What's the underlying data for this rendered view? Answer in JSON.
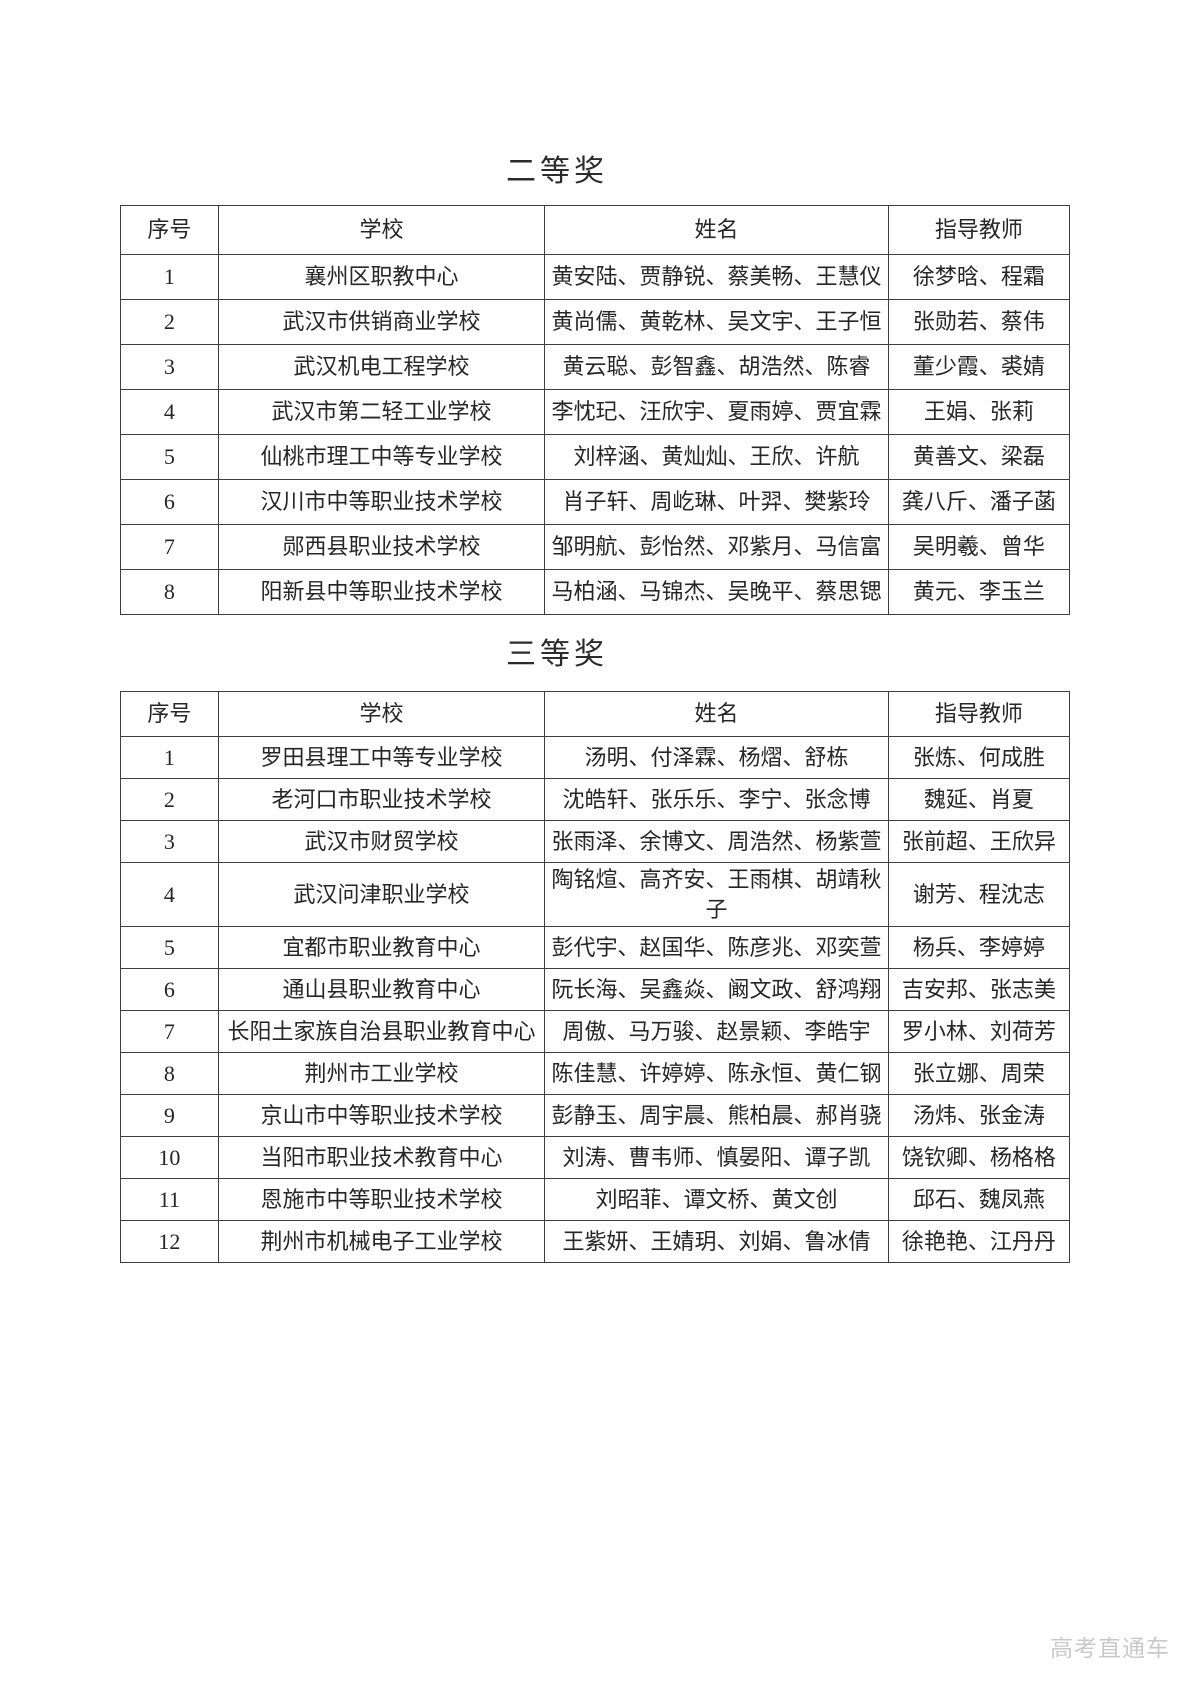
{
  "document": {
    "watermark": "高考直通车"
  },
  "tables": [
    {
      "title": "二等奖",
      "headers": [
        "序号",
        "学校",
        "姓名",
        "指导教师"
      ],
      "rows": [
        [
          "1",
          "襄州区职教中心",
          "黄安陆、贾静锐、蔡美畅、王慧仪",
          "徐梦晗、程霜"
        ],
        [
          "2",
          "武汉市供销商业学校",
          "黄尚儒、黄乾林、吴文宇、王子恒",
          "张勋若、蔡伟"
        ],
        [
          "3",
          "武汉机电工程学校",
          "黄云聪、彭智鑫、胡浩然、陈睿",
          "董少霞、裘婧"
        ],
        [
          "4",
          "武汉市第二轻工业学校",
          "李忱玘、汪欣宇、夏雨婷、贾宜霖",
          "王娟、张莉"
        ],
        [
          "5",
          "仙桃市理工中等专业学校",
          "刘梓涵、黄灿灿、王欣、许航",
          "黄善文、梁磊"
        ],
        [
          "6",
          "汉川市中等职业技术学校",
          "肖子轩、周屹琳、叶羿、樊紫玲",
          "龚八斤、潘子菡"
        ],
        [
          "7",
          "郧西县职业技术学校",
          "邹明航、彭怡然、邓紫月、马信富",
          "吴明羲、曾华"
        ],
        [
          "8",
          "阳新县中等职业技术学校",
          "马柏涵、马锦杰、吴晚平、蔡思锶",
          "黄元、李玉兰"
        ]
      ]
    },
    {
      "title": "三等奖",
      "headers": [
        "序号",
        "学校",
        "姓名",
        "指导教师"
      ],
      "rows": [
        [
          "1",
          "罗田县理工中等专业学校",
          "汤明、付泽霖、杨熠、舒栋",
          "张炼、何成胜"
        ],
        [
          "2",
          "老河口市职业技术学校",
          "沈皓轩、张乐乐、李宁、张念博",
          "魏延、肖夏"
        ],
        [
          "3",
          "武汉市财贸学校",
          "张雨泽、余博文、周浩然、杨紫萱",
          "张前超、王欣异"
        ],
        [
          "4",
          "武汉问津职业学校",
          "陶铭煊、高齐安、王雨棋、胡靖秋子",
          "谢芳、程沈志"
        ],
        [
          "5",
          "宜都市职业教育中心",
          "彭代宇、赵国华、陈彦兆、邓奕萱",
          "杨兵、李婷婷"
        ],
        [
          "6",
          "通山县职业教育中心",
          "阮长海、吴鑫焱、阚文政、舒鸿翔",
          "吉安邦、张志美"
        ],
        [
          "7",
          "长阳土家族自治县职业教育中心",
          "周傲、马万骏、赵景颖、李皓宇",
          "罗小林、刘荷芳"
        ],
        [
          "8",
          "荆州市工业学校",
          "陈佳慧、许婷婷、陈永恒、黄仁钢",
          "张立娜、周荣"
        ],
        [
          "9",
          "京山市中等职业技术学校",
          "彭静玉、周宇晨、熊柏晨、郝肖骁",
          "汤炜、张金涛"
        ],
        [
          "10",
          "当阳市职业技术教育中心",
          "刘涛、曹韦师、慎晏阳、谭子凯",
          "饶钦卿、杨格格"
        ],
        [
          "11",
          "恩施市中等职业技术学校",
          "刘昭菲、谭文桥、黄文创",
          "邱石、魏凤燕"
        ],
        [
          "12",
          "荆州市机械电子工业学校",
          "王紫妍、王婧玥、刘娟、鲁冰倩",
          "徐艳艳、江丹丹"
        ]
      ]
    }
  ]
}
